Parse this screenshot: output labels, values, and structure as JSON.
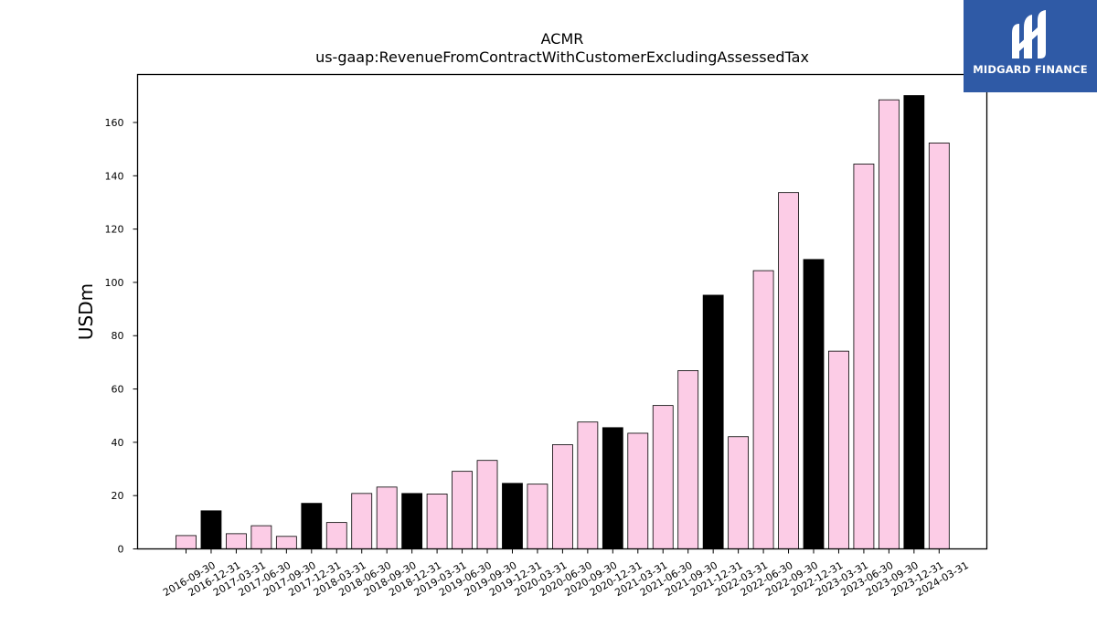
{
  "logo": {
    "text": "MIDGARD FINANCE",
    "background": "#2f5aa6"
  },
  "chart_data": {
    "type": "bar",
    "title": "ACMR",
    "subtitle": "us-gaap:RevenueFromContractWithCustomerExcludingAssessedTax",
    "xlabel": "",
    "ylabel": "USDm",
    "ylim": [
      0,
      178
    ],
    "yticks": [
      0,
      20,
      40,
      60,
      80,
      100,
      120,
      140,
      160
    ],
    "grid": false,
    "colors": {
      "quarter": "#fccce6",
      "annual": "#000000",
      "edge": "#000000"
    },
    "categories": [
      "2016-09-30",
      "2016-12-31",
      "2017-03-31",
      "2017-06-30",
      "2017-09-30",
      "2017-12-31",
      "2018-03-31",
      "2018-06-30",
      "2018-09-30",
      "2018-12-31",
      "2019-03-31",
      "2019-06-30",
      "2019-09-30",
      "2019-12-31",
      "2020-03-31",
      "2020-06-30",
      "2020-09-30",
      "2020-12-31",
      "2021-03-31",
      "2021-06-30",
      "2021-09-30",
      "2021-12-31",
      "2022-03-31",
      "2022-06-30",
      "2022-09-30",
      "2022-12-31",
      "2023-03-31",
      "2023-06-30",
      "2023-09-30",
      "2023-12-31",
      "2024-03-31"
    ],
    "values": [
      5,
      14.3,
      5.7,
      8.7,
      4.7,
      17.1,
      9.9,
      20.8,
      23.2,
      20.8,
      20.6,
      29.1,
      33.2,
      24.6,
      24.3,
      39.1,
      47.6,
      45.5,
      43.4,
      53.8,
      66.9,
      95.2,
      42.1,
      104.4,
      133.7,
      108.6,
      74.2,
      144.4,
      168.5,
      170.1,
      152.3
    ],
    "annual": [
      false,
      true,
      false,
      false,
      false,
      true,
      false,
      false,
      false,
      true,
      false,
      false,
      false,
      true,
      false,
      false,
      false,
      true,
      false,
      false,
      false,
      true,
      false,
      false,
      false,
      true,
      false,
      false,
      false,
      true,
      false
    ]
  }
}
